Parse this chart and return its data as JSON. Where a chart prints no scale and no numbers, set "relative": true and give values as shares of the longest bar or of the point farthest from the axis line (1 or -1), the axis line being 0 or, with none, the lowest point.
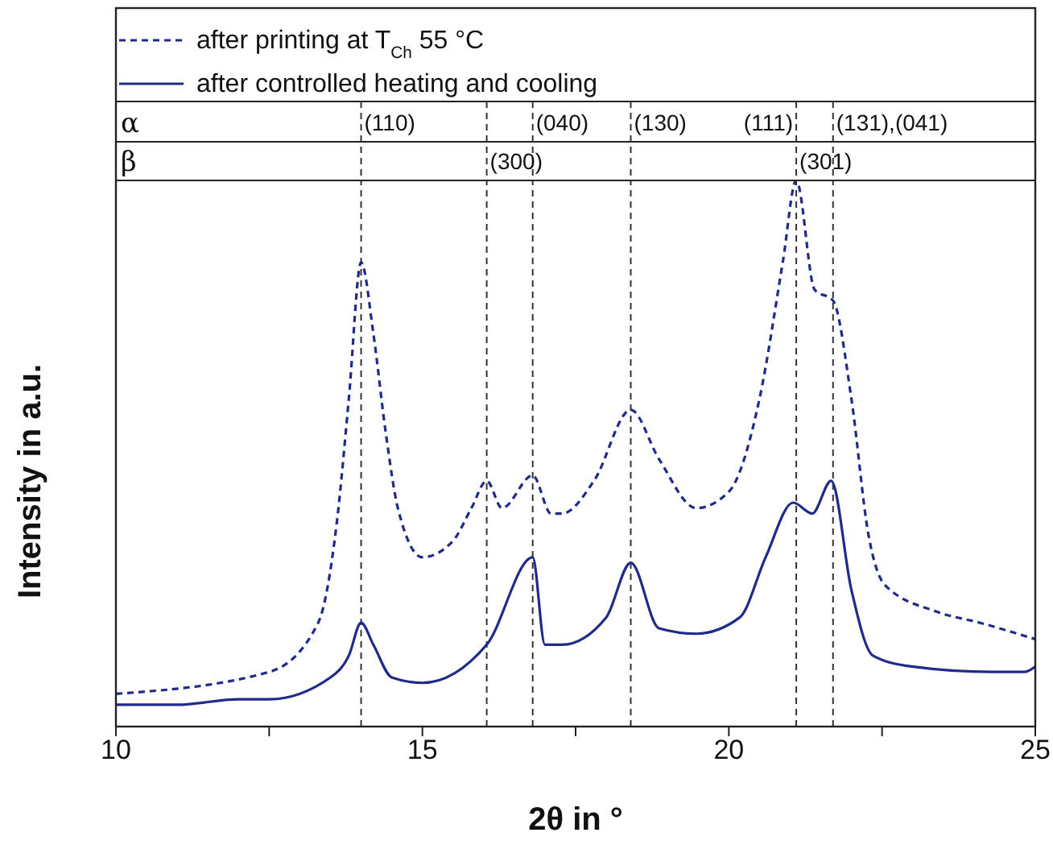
{
  "chart_data": {
    "type": "line",
    "xlabel": "2θ in °",
    "ylabel": "Intensity in a.u.",
    "relative": true,
    "xlim": [
      10,
      25
    ],
    "xticks": [
      10,
      {
        "value": 12.5,
        "label": null
      },
      15,
      {
        "value": 17.5,
        "label": null
      },
      20,
      {
        "value": 22.5,
        "label": null
      },
      25
    ],
    "legend": "top",
    "marker": "none",
    "series": [
      {
        "name": "after printing at T$_{Ch}$ 55 °C",
        "color": "#1f2a8a",
        "line_style": "dashed",
        "x": [
          10,
          12.5,
          13.3,
          13.6,
          13.8,
          14.0,
          14.2,
          14.4,
          14.6,
          15.0,
          15.5,
          15.8,
          16.05,
          16.3,
          16.8,
          17.1,
          17.28,
          17.8,
          18.4,
          18.86,
          19.47,
          20.0,
          20.5,
          20.88,
          21.1,
          21.4,
          21.7,
          22.0,
          22.28,
          22.54,
          23.4,
          24.1,
          25
        ],
        "values": [
          0.06,
          0.1,
          0.19,
          0.37,
          0.6,
          0.85,
          0.72,
          0.54,
          0.4,
          0.31,
          0.34,
          0.4,
          0.45,
          0.4,
          0.46,
          0.39,
          0.39,
          0.45,
          0.58,
          0.49,
          0.4,
          0.43,
          0.6,
          0.85,
          1.0,
          0.8,
          0.78,
          0.6,
          0.35,
          0.26,
          0.21,
          0.19,
          0.16
        ]
      },
      {
        "name": "after controlled heating and cooling",
        "color": "#1f2a8a",
        "line_style": "solid",
        "x": [
          10,
          11,
          12,
          12.5,
          13.5,
          13.8,
          14.0,
          14.2,
          14.5,
          15.0,
          16.05,
          16.8,
          17.0,
          17.28,
          18.0,
          18.4,
          18.86,
          19.47,
          20.18,
          20.6,
          21.05,
          21.36,
          21.67,
          22.0,
          22.35,
          22.98,
          24.3,
          24.82,
          25
        ],
        "values": [
          0.04,
          0.04,
          0.05,
          0.05,
          0.09,
          0.13,
          0.19,
          0.15,
          0.09,
          0.08,
          0.15,
          0.31,
          0.15,
          0.15,
          0.2,
          0.3,
          0.18,
          0.17,
          0.2,
          0.31,
          0.41,
          0.39,
          0.45,
          0.25,
          0.13,
          0.11,
          0.1,
          0.1,
          0.11
        ]
      }
    ],
    "ref_lines": [
      {
        "axis": "x",
        "value": 14.0,
        "color": "#333333",
        "line_style": "dashed"
      },
      {
        "axis": "x",
        "value": 16.8,
        "color": "#333333",
        "line_style": "dashed"
      },
      {
        "axis": "x",
        "value": 18.4,
        "color": "#333333",
        "line_style": "dashed"
      },
      {
        "axis": "x",
        "value": 21.1,
        "color": "#333333",
        "line_style": "dashed"
      },
      {
        "axis": "x",
        "value": 21.7,
        "color": "#333333",
        "line_style": "dashed"
      },
      {
        "axis": "x",
        "value": 16.05,
        "color": "#333333",
        "line_style": "dashed"
      }
    ],
    "annotations": [
      "α",
      "β",
      "(110)",
      "(040)",
      "(130)",
      "(111)",
      "(131),(041)",
      "(300)",
      "(301)"
    ]
  }
}
